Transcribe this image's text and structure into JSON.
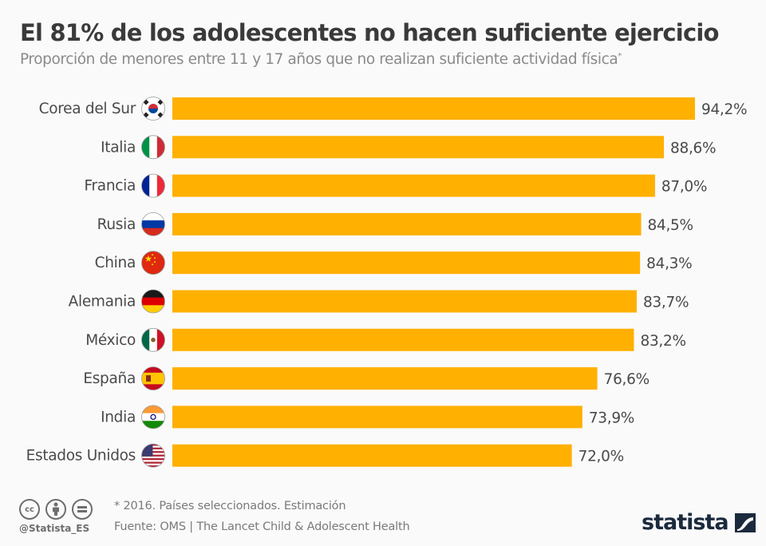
{
  "header": {
    "title": "El 81% de los adolescentes no hacen suficiente ejercicio",
    "subtitle": "Proporción de menores entre 11 y 17 años que no realizan suficiente actividad física",
    "subtitle_mark": "*"
  },
  "chart_data": {
    "type": "bar",
    "orientation": "horizontal",
    "title": "El 81% de los adolescentes no hacen suficiente ejercicio",
    "subtitle": "Proporción de menores entre 11 y 17 años que no realizan suficiente actividad física*",
    "xlabel": "",
    "ylabel": "",
    "xlim": [
      0,
      100
    ],
    "grid": false,
    "unit": "%",
    "bar_color": "#ffb000",
    "categories": [
      "Corea del Sur",
      "Italia",
      "Francia",
      "Rusia",
      "China",
      "Alemania",
      "México",
      "España",
      "India",
      "Estados Unidos"
    ],
    "flags": [
      "south-korea-flag-icon",
      "italy-flag-icon",
      "france-flag-icon",
      "russia-flag-icon",
      "china-flag-icon",
      "germany-flag-icon",
      "mexico-flag-icon",
      "spain-flag-icon",
      "india-flag-icon",
      "usa-flag-icon"
    ],
    "values": [
      94.2,
      88.6,
      87.0,
      84.5,
      84.3,
      83.7,
      83.2,
      76.6,
      73.9,
      72.0
    ],
    "labels": [
      "94,2%",
      "88,6%",
      "87,0%",
      "84,5%",
      "84,3%",
      "83,7%",
      "83,2%",
      "76,6%",
      "73,9%",
      "72,0%"
    ]
  },
  "footer": {
    "note": "* 2016. Países seleccionados. Estimación",
    "source": "Fuente: OMS | The Lancet Child & Adolescent Health",
    "handle": "@Statista_ES",
    "cc_icons": [
      "cc",
      "by",
      "nd"
    ],
    "brand": "statista"
  }
}
